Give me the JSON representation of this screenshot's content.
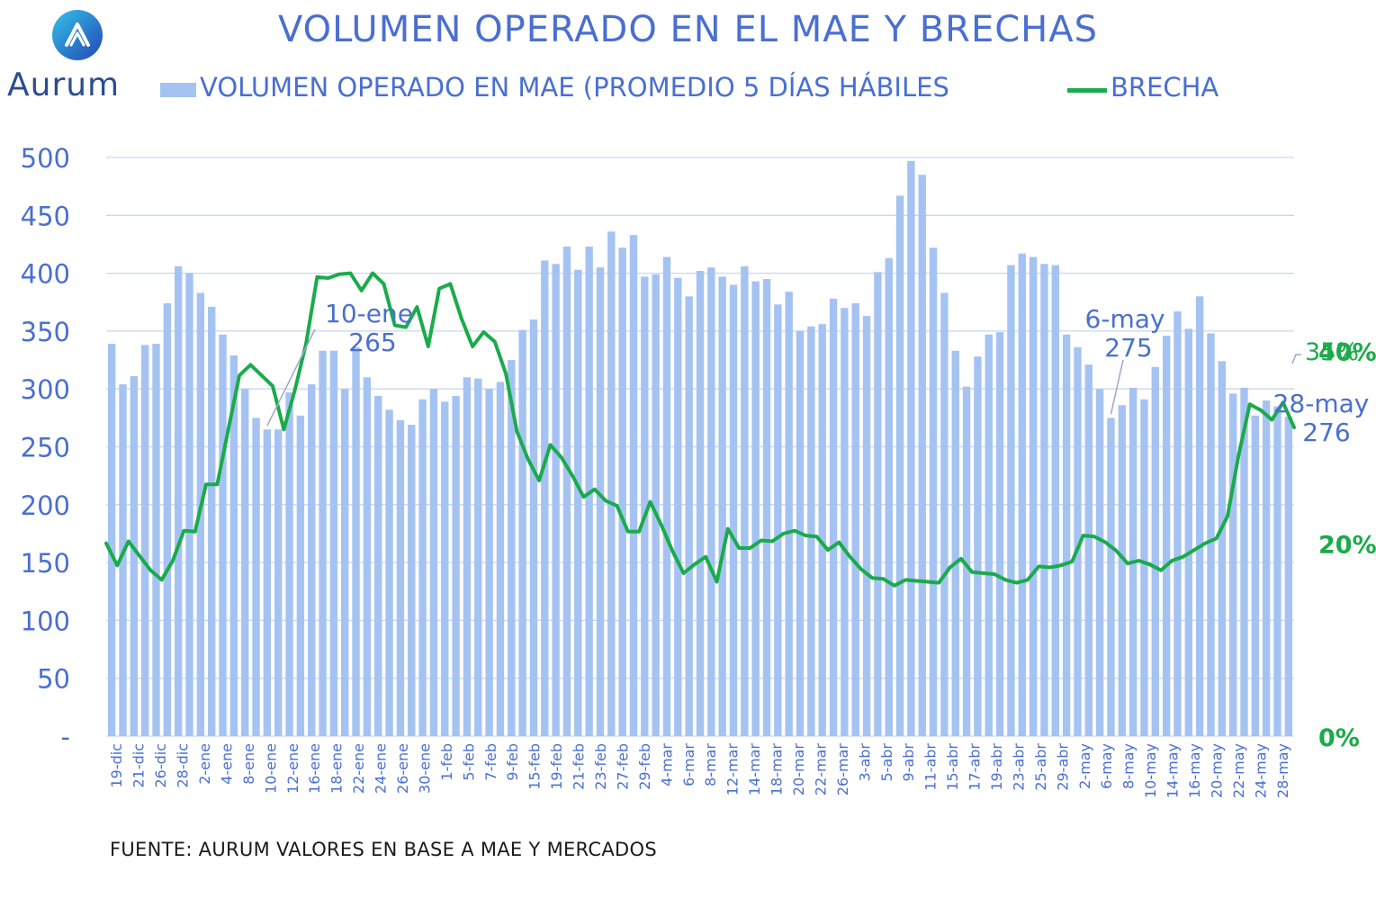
{
  "header": {
    "title": "VOLUMEN OPERADO EN EL MAE Y BRECHAS",
    "logo_text": "Aurum",
    "logo_icon": "aurum-logo-icon"
  },
  "legend": {
    "bar_label": "VOLUMEN OPERADO EN MAE (PROMEDIO 5 DÍAS HÁBILES",
    "line_label": "BRECHA"
  },
  "footer": {
    "source": "FUENTE: AURUM VALORES EN BASE A MAE Y MERCADOS"
  },
  "colors": {
    "bar": "#a5c3f2",
    "line": "#1aab4a",
    "text_blue": "#4a6fd1",
    "text_green": "#1aab4a",
    "grid": "#c9d6ef"
  },
  "chart_data": {
    "type": "bar",
    "title": "VOLUMEN OPERADO EN EL MAE Y BRECHAS",
    "ylim": [
      0,
      500
    ],
    "y2lim": [
      0,
      0.6
    ],
    "y_ticks": [
      "-",
      "50",
      "100",
      "150",
      "200",
      "250",
      "300",
      "350",
      "400",
      "450",
      "500"
    ],
    "y2_ticks": [
      {
        "value": 0.0,
        "label": "0%"
      },
      {
        "value": 0.2,
        "label": "20%"
      },
      {
        "value": 0.4,
        "label": "40%"
      }
    ],
    "x_tick_labels": [
      "19-dic",
      "21-dic",
      "26-dic",
      "28-dic",
      "2-ene",
      "4-ene",
      "8-ene",
      "10-ene",
      "12-ene",
      "16-ene",
      "18-ene",
      "22-ene",
      "24-ene",
      "26-ene",
      "30-ene",
      "1-feb",
      "5-feb",
      "7-feb",
      "9-feb",
      "15-feb",
      "19-feb",
      "21-feb",
      "23-feb",
      "27-feb",
      "29-feb",
      "4-mar",
      "6-mar",
      "8-mar",
      "12-mar",
      "14-mar",
      "18-mar",
      "20-mar",
      "22-mar",
      "26-mar",
      "3-abr",
      "5-abr",
      "9-abr",
      "11-abr",
      "15-abr",
      "17-abr",
      "19-abr",
      "23-abr",
      "25-abr",
      "29-abr",
      "2-may",
      "6-may",
      "8-may",
      "10-may",
      "14-may",
      "16-may",
      "20-may",
      "22-may",
      "24-may",
      "28-may"
    ],
    "grid": true,
    "legend_position": "top",
    "series": [
      {
        "name": "VOLUMEN OPERADO EN MAE (PROMEDIO 5 DÍAS HÁBILES",
        "type": "bar",
        "axis": "left",
        "values": [
          339,
          304,
          311,
          338,
          339,
          374,
          406,
          400,
          383,
          371,
          347,
          329,
          300,
          275,
          265,
          265,
          297,
          277,
          304,
          333,
          333,
          300,
          336,
          310,
          294,
          282,
          273,
          269,
          291,
          300,
          289,
          294,
          310,
          309,
          300,
          306,
          325,
          351,
          360,
          411,
          408,
          423,
          403,
          423,
          405,
          436,
          422,
          433,
          397,
          399,
          414,
          396,
          380,
          402,
          405,
          397,
          390,
          406,
          393,
          395,
          373,
          384,
          350,
          354,
          356,
          378,
          370,
          374,
          363,
          401,
          413,
          467,
          497,
          485,
          422,
          383,
          333,
          302,
          328,
          347,
          349,
          407,
          417,
          414,
          408,
          407,
          347,
          336,
          321,
          300,
          275,
          286,
          301,
          291,
          319,
          346,
          367,
          352,
          380,
          348,
          324,
          296,
          301,
          277,
          290,
          285,
          276
        ]
      },
      {
        "name": "BRECHA",
        "type": "line",
        "axis": "right",
        "values": [
          0.2,
          0.177,
          0.202,
          0.187,
          0.172,
          0.162,
          0.182,
          0.213,
          0.212,
          0.261,
          0.261,
          0.318,
          0.374,
          0.385,
          0.374,
          0.363,
          0.318,
          0.359,
          0.407,
          0.476,
          0.475,
          0.479,
          0.48,
          0.462,
          0.48,
          0.469,
          0.426,
          0.424,
          0.445,
          0.404,
          0.464,
          0.469,
          0.433,
          0.404,
          0.419,
          0.409,
          0.376,
          0.316,
          0.287,
          0.265,
          0.302,
          0.289,
          0.27,
          0.248,
          0.256,
          0.244,
          0.239,
          0.212,
          0.212,
          0.243,
          0.219,
          0.192,
          0.169,
          0.178,
          0.186,
          0.16,
          0.215,
          0.195,
          0.195,
          0.203,
          0.202,
          0.21,
          0.213,
          0.208,
          0.207,
          0.193,
          0.201,
          0.186,
          0.173,
          0.164,
          0.163,
          0.156,
          0.162,
          0.161,
          0.16,
          0.159,
          0.175,
          0.184,
          0.17,
          0.169,
          0.168,
          0.162,
          0.159,
          0.162,
          0.176,
          0.175,
          0.177,
          0.181,
          0.208,
          0.207,
          0.201,
          0.192,
          0.179,
          0.182,
          0.178,
          0.172,
          0.182,
          0.186,
          0.193,
          0.2,
          0.205,
          0.228,
          0.291,
          0.344,
          0.338,
          0.328,
          0.346,
          0.32
        ]
      }
    ],
    "annotations": [
      {
        "date": "10-ene",
        "value": "265",
        "bar_index": 14
      },
      {
        "date": "6-may",
        "value": "275",
        "bar_index": 90
      },
      {
        "date": "28-may",
        "value": "276",
        "bar_index": 106
      },
      {
        "value": "35%",
        "series": "BRECHA"
      }
    ]
  }
}
